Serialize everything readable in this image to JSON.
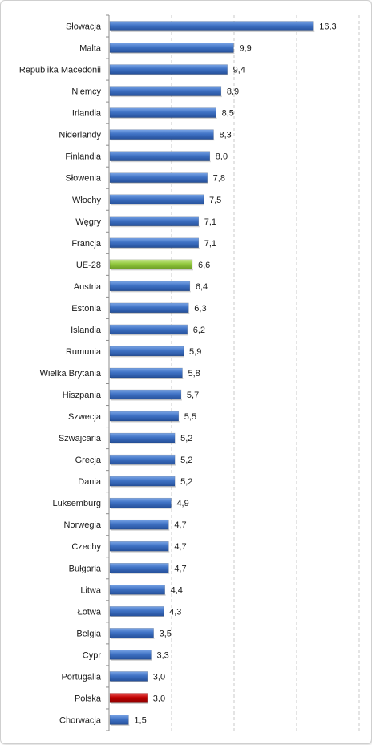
{
  "chart_data": {
    "type": "bar",
    "orientation": "horizontal",
    "categories": [
      "Słowacja",
      "Malta",
      "Republika Macedonii",
      "Niemcy",
      "Irlandia",
      "Niderlandy",
      "Finlandia",
      "Słowenia",
      "Włochy",
      "Węgry",
      "Francja",
      "UE-28",
      "Austria",
      "Estonia",
      "Islandia",
      "Rumunia",
      "Wielka Brytania",
      "Hiszpania",
      "Szwecja",
      "Szwajcaria",
      "Grecja",
      "Dania",
      "Luksemburg",
      "Norwegia",
      "Czechy",
      "Bułgaria",
      "Litwa",
      "Łotwa",
      "Belgia",
      "Cypr",
      "Portugalia",
      "Polska",
      "Chorwacja"
    ],
    "values": [
      16.3,
      9.9,
      9.4,
      8.9,
      8.5,
      8.3,
      8.0,
      7.8,
      7.5,
      7.1,
      7.1,
      6.6,
      6.4,
      6.3,
      6.2,
      5.9,
      5.8,
      5.7,
      5.5,
      5.2,
      5.2,
      5.2,
      4.9,
      4.7,
      4.7,
      4.7,
      4.4,
      4.3,
      3.5,
      3.3,
      3.0,
      3.0,
      1.5
    ],
    "value_labels": [
      "16,3",
      "9,9",
      "9,4",
      "8,9",
      "8,5",
      "8,3",
      "8,0",
      "7,8",
      "7,5",
      "7,1",
      "7,1",
      "6,6",
      "6,4",
      "6,3",
      "6,2",
      "5,9",
      "5,8",
      "5,7",
      "5,5",
      "5,2",
      "5,2",
      "5,2",
      "4,9",
      "4,7",
      "4,7",
      "4,7",
      "4,4",
      "4,3",
      "3,5",
      "3,3",
      "3,0",
      "3,0",
      "1,5"
    ],
    "xlim": [
      0,
      20
    ],
    "grid": "vertical dashed",
    "legend": "none",
    "colors": {
      "default": "#3f72c4",
      "highlight_eu": "#92c83e",
      "highlight_pl": "#c00000"
    },
    "highlights": {
      "UE-28": "highlight_eu",
      "Polska": "highlight_pl"
    }
  }
}
